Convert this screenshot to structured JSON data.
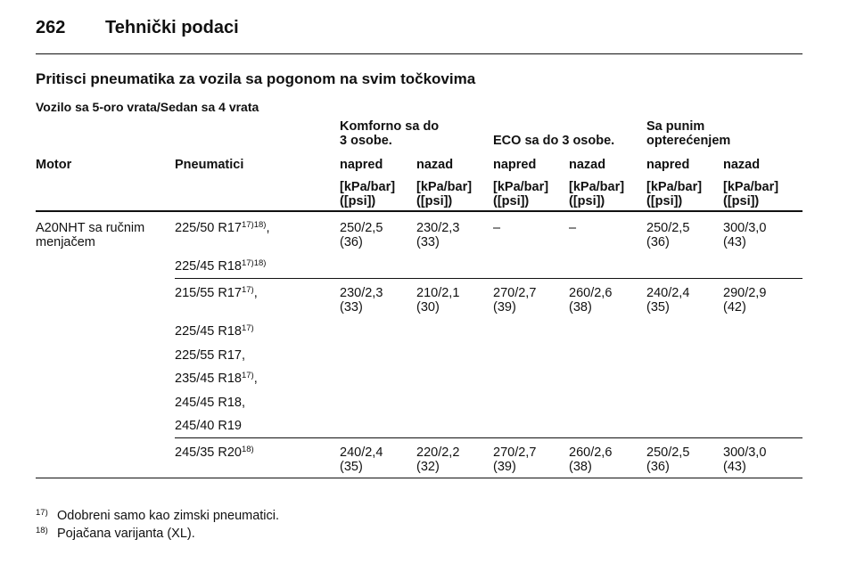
{
  "header": {
    "page_number": "262",
    "title": "Tehnički podaci"
  },
  "section_title": "Pritisci pneumatika za vozila sa pogonom na svim točkovima",
  "subtitle": "Vozilo sa 5-oro vrata/Sedan sa 4 vrata",
  "table": {
    "group_headers": [
      [
        "Komforno sa do",
        "3 osobe."
      ],
      [
        "ECO sa do 3 osobe."
      ],
      [
        "Sa punim",
        "opterećenjem"
      ]
    ],
    "columns": [
      "Motor",
      "Pneumatici",
      "napred",
      "nazad",
      "napred",
      "nazad",
      "napred",
      "nazad"
    ],
    "units": [
      [
        "[kPa/bar]",
        "([psi])"
      ],
      [
        "[kPa/bar]",
        "([psi])"
      ],
      [
        "[kPa/bar]",
        "([psi])"
      ],
      [
        "[kPa/bar]",
        "([psi])"
      ],
      [
        "[kPa/bar]",
        "([psi])"
      ],
      [
        "[kPa/bar]",
        "([psi])"
      ]
    ],
    "groups": [
      {
        "motor": [
          "A20NHT sa ručnim",
          "menjačem"
        ],
        "tires": [
          {
            "name": "225/50 R17",
            "sup": "17)18)",
            "suffix": ","
          },
          {
            "name": "225/45 R18",
            "sup": "17)18)"
          }
        ],
        "values": [
          [
            "250/2,5",
            "(36)"
          ],
          [
            "230/2,3",
            "(33)"
          ],
          [
            "–"
          ],
          [
            "–"
          ],
          [
            "250/2,5",
            "(36)"
          ],
          [
            "300/3,0",
            "(43)"
          ]
        ]
      },
      {
        "tires": [
          {
            "name": "215/55 R17",
            "sup": "17)",
            "suffix": ","
          },
          {
            "name": "225/45 R18",
            "sup": "17)"
          },
          {
            "name": "225/55 R17,"
          },
          {
            "name": "235/45 R18",
            "sup": "17)",
            "suffix": ","
          },
          {
            "name": "245/45 R18,"
          },
          {
            "name": "245/40 R19"
          }
        ],
        "values": [
          [
            "230/2,3",
            "(33)"
          ],
          [
            "210/2,1",
            "(30)"
          ],
          [
            "270/2,7",
            "(39)"
          ],
          [
            "260/2,6",
            "(38)"
          ],
          [
            "240/2,4",
            "(35)"
          ],
          [
            "290/2,9",
            "(42)"
          ]
        ]
      },
      {
        "tires": [
          {
            "name": "245/35 R20",
            "sup": "18)"
          }
        ],
        "values": [
          [
            "240/2,4",
            "(35)"
          ],
          [
            "220/2,2",
            "(32)"
          ],
          [
            "270/2,7",
            "(39)"
          ],
          [
            "260/2,6",
            "(38)"
          ],
          [
            "250/2,5",
            "(36)"
          ],
          [
            "300/3,0",
            "(43)"
          ]
        ]
      }
    ]
  },
  "footnotes": [
    {
      "mark": "17)",
      "text": "Odobreni samo kao zimski pneumatici."
    },
    {
      "mark": "18)",
      "text": "Pojačana varijanta (XL)."
    }
  ]
}
